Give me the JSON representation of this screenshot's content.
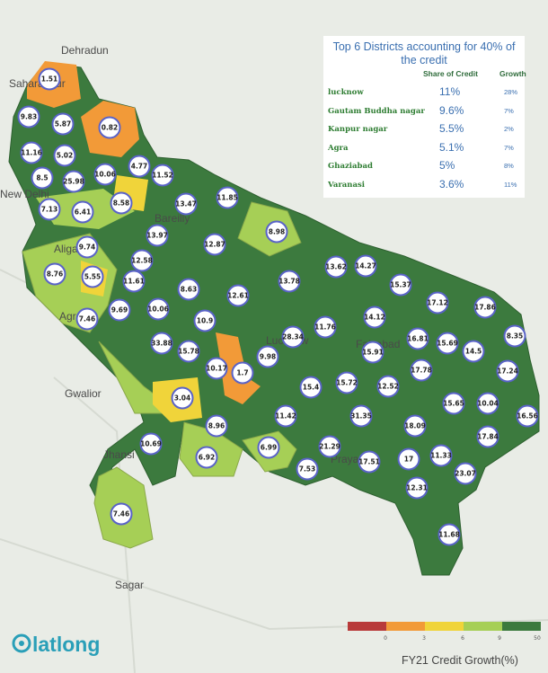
{
  "places": [
    "Dehradun",
    "Saharanpur",
    "New Delhi",
    "Bareilly",
    "Aligarh",
    "Agra",
    "Gwalior",
    "Jhansi",
    "Lucknow",
    "Faizabad",
    "Prayagraj",
    "Sagar"
  ],
  "districts": [
    1.51,
    9.83,
    5.87,
    0.82,
    11.16,
    5.02,
    8.5,
    25.98,
    10.06,
    4.77,
    11.52,
    7.13,
    6.41,
    8.58,
    13.47,
    11.85,
    9.74,
    13.97,
    12.87,
    8.98,
    8.76,
    5.55,
    12.58,
    11.61,
    8.63,
    12.61,
    13.78,
    13.62,
    14.27,
    15.37,
    7.46,
    9.69,
    10.06,
    17.12,
    17.86,
    10.9,
    11.76,
    14.12,
    33.88,
    15.78,
    28.34,
    16.81,
    15.69,
    14.5,
    8.35,
    10.17,
    1.7,
    9.98,
    15.91,
    15.4,
    15.72,
    12.52,
    17.78,
    17.24,
    3.04,
    15.65,
    10.04,
    16.56,
    11.42,
    31.35,
    18.09,
    8.96,
    10.69,
    17.84,
    6.99,
    21.29,
    11.33,
    6.92,
    17.51,
    17,
    23.07,
    7.53,
    12.31,
    7.46,
    11.68
  ],
  "panel": {
    "title": "Top 6 Districts accounting for 40% of the credit",
    "headers": [
      "Share of Credit",
      "Growth"
    ],
    "rows": [
      [
        "lucknow",
        "11%",
        "28%"
      ],
      [
        "Gautam Buddha nagar",
        "9.6%",
        "7%"
      ],
      [
        "Kanpur nagar",
        "5.5%",
        "2%"
      ],
      [
        "Agra",
        "5.1%",
        "7%"
      ],
      [
        "Ghaziabad",
        "5%",
        "8%"
      ],
      [
        "Varanasi",
        "3.6%",
        "11%"
      ]
    ]
  },
  "legend": {
    "title": "FY21 Credit Growth(%)",
    "ticks": [
      0,
      3,
      6,
      9,
      50
    ]
  },
  "logo": "latlong"
}
